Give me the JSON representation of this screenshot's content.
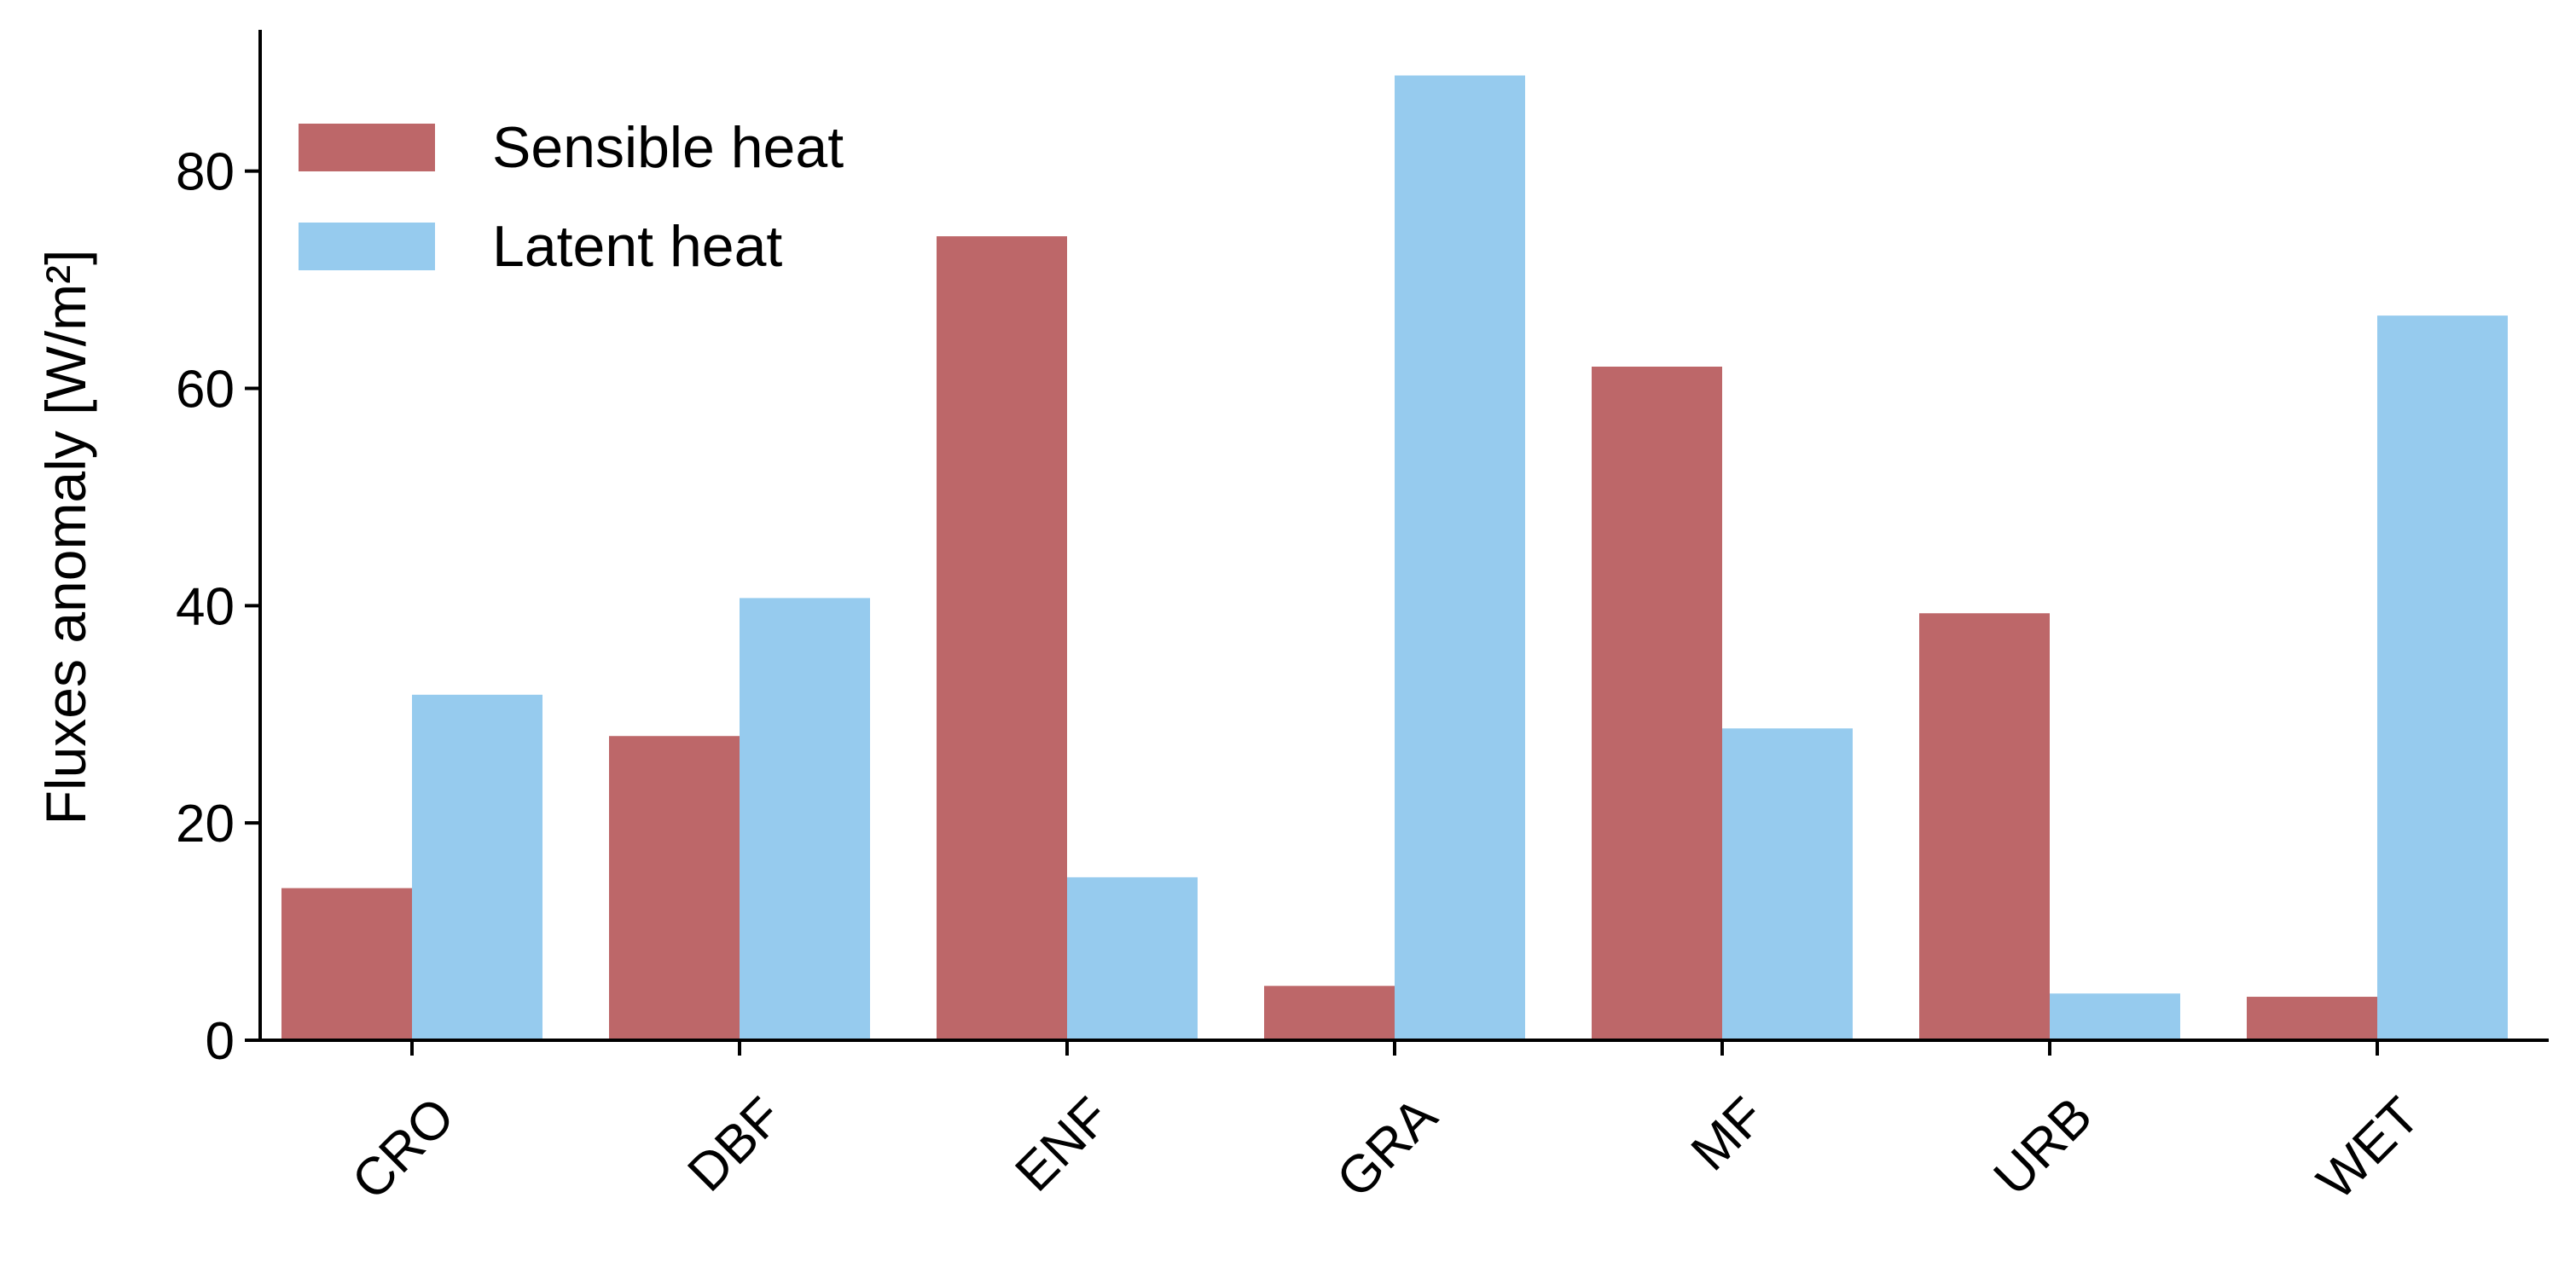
{
  "chart_data": {
    "type": "bar",
    "categories": [
      "CRO",
      "DBF",
      "ENF",
      "GRA",
      "MF",
      "URB",
      "WET"
    ],
    "series": [
      {
        "name": "Sensible heat",
        "color": "#bd6769",
        "values": [
          14,
          28,
          74,
          5,
          62,
          39.3,
          4
        ]
      },
      {
        "name": "Latent heat",
        "color": "#96cbee",
        "values": [
          31.8,
          40.7,
          15,
          88.8,
          28.7,
          4.3,
          66.7
        ]
      }
    ],
    "title": "",
    "xlabel": "",
    "ylabel": "Fluxes anomaly [W/m²]",
    "ylim": [
      0,
      93
    ],
    "yticks": [
      0,
      20,
      40,
      60,
      80
    ],
    "grid": false,
    "legend_position": "top-left"
  }
}
